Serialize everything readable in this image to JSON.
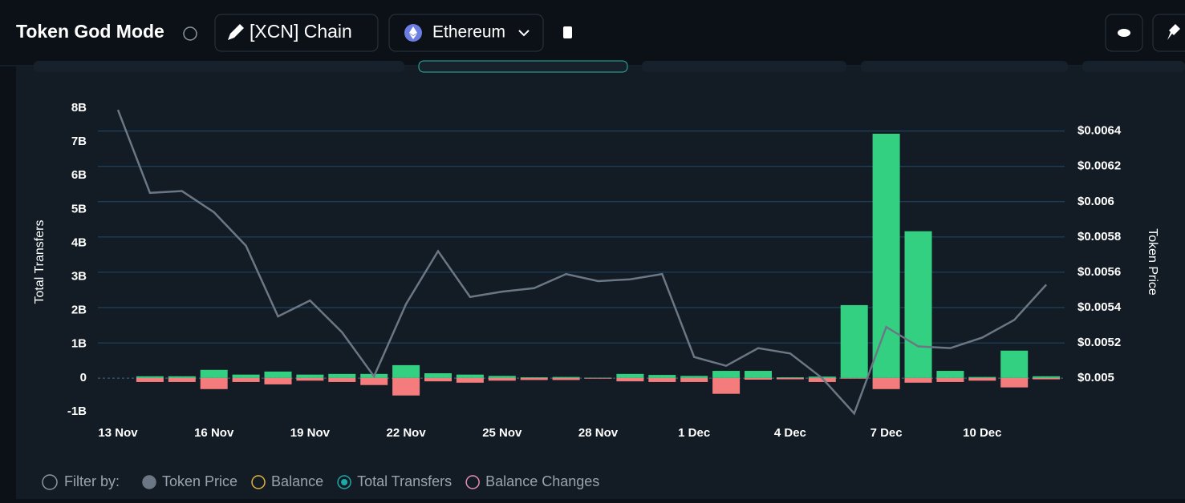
{
  "header": {
    "title": "Token God Mode",
    "token": "[XCN] Chain",
    "network": "Ethereum"
  },
  "chart_data": {
    "type": "bar",
    "ylabel": "Total Transfers",
    "y2label": "Token Price",
    "categories": [
      "13 Nov",
      null,
      null,
      "16 Nov",
      null,
      null,
      "19 Nov",
      null,
      null,
      "22 Nov",
      null,
      null,
      "25 Nov",
      null,
      null,
      "28 Nov",
      null,
      null,
      "1 Dec",
      null,
      null,
      "4 Dec",
      null,
      null,
      "7 Dec",
      null,
      null,
      "10 Dec",
      null,
      null
    ],
    "ylim": [
      -1,
      8
    ],
    "yticks": [
      {
        "value": -1,
        "label": "-1B"
      },
      0,
      {
        "value": 1,
        "label": "1B"
      },
      {
        "value": 2,
        "label": "2B"
      },
      {
        "value": 3,
        "label": "3B"
      },
      {
        "value": 4,
        "label": "4B"
      },
      {
        "value": 5,
        "label": "5B"
      },
      {
        "value": 6,
        "label": "6B"
      },
      {
        "value": 7,
        "label": "7B"
      },
      {
        "value": 8,
        "label": "8B"
      }
    ],
    "y2lim": [
      0.00481,
      0.00653
    ],
    "y2ticks": [
      {
        "value": 0.005,
        "label": "$0.005"
      },
      {
        "value": 0.0052,
        "label": "$0.0052"
      },
      {
        "value": 0.0054,
        "label": "$0.0054"
      },
      {
        "value": 0.0056,
        "label": "$0.0056"
      },
      {
        "value": 0.0058,
        "label": "$0.0058"
      },
      {
        "value": 0.006,
        "label": "$0.006"
      },
      {
        "value": 0.0062,
        "label": "$0.0062"
      },
      {
        "value": 0.0064,
        "label": "$0.0064"
      }
    ],
    "grid": "y2",
    "filter_label": "Filter by:",
    "series": [
      {
        "name": "Token Price",
        "type": "line",
        "axis": "y2",
        "color": "#6b7785",
        "legend_color": "#6b7785",
        "values": [
          0.00652,
          0.00605,
          0.00606,
          0.00594,
          0.00575,
          0.00535,
          0.00544,
          0.00526,
          0.00501,
          0.00542,
          0.00572,
          0.00546,
          0.00549,
          0.00551,
          0.00559,
          0.00555,
          0.00556,
          0.00559,
          0.00512,
          0.00507,
          0.00517,
          0.00514,
          0.005,
          0.0048,
          0.00529,
          0.00518,
          0.00517,
          0.00523,
          0.00533,
          0.00553
        ]
      },
      {
        "name": "Total Transfers",
        "type": "bar",
        "color": "#34d082",
        "legend_color": "#1fa8a8",
        "values": [
          null,
          0.05,
          0.05,
          0.24,
          0.1,
          0.19,
          0.1,
          0.12,
          0.12,
          0.38,
          0.14,
          0.1,
          0.06,
          0.02,
          0.03,
          0.01,
          0.12,
          0.09,
          0.06,
          0.21,
          0.21,
          0.02,
          0.04,
          2.16,
          7.24,
          4.35,
          0.21,
          0.03,
          0.81,
          0.05
        ]
      },
      {
        "name": "Balance Changes",
        "type": "bar",
        "color": "#f47c7c",
        "legend_color": "#e58fb0",
        "values": [
          null,
          -0.12,
          -0.12,
          -0.33,
          -0.12,
          -0.19,
          -0.08,
          -0.12,
          -0.21,
          -0.52,
          -0.1,
          -0.14,
          -0.08,
          -0.06,
          -0.06,
          -0.02,
          -0.1,
          -0.12,
          -0.12,
          -0.47,
          -0.05,
          -0.04,
          -0.12,
          -0.02,
          -0.33,
          -0.14,
          -0.12,
          -0.08,
          -0.28,
          -0.04
        ]
      }
    ],
    "extra_filters": [
      {
        "name": "Balance",
        "color": "#e3b341"
      }
    ]
  }
}
